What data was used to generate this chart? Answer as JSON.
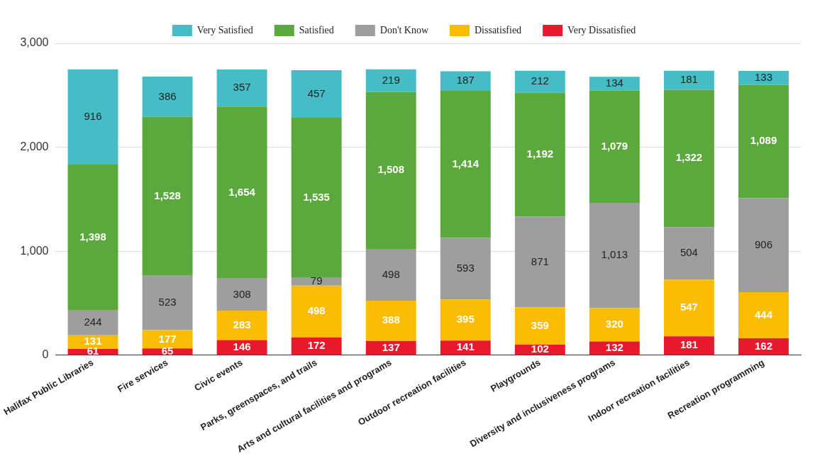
{
  "chart_data": {
    "type": "bar",
    "stacked": true,
    "categories": [
      "Halifax Public Libraries",
      "Fire services",
      "Civic events",
      "Parks, greenspaces, and trails",
      "Arts and cultural facilities and programs",
      "Outdoor recreation facilities",
      "Playgrounds",
      "Diversity and inclusiveness programs",
      "Indoor recreation facilities",
      "Recreation programming"
    ],
    "series": [
      {
        "name": "Very Dissatisfied",
        "color": "#e8192c",
        "values": [
          61,
          65,
          146,
          172,
          137,
          141,
          102,
          132,
          181,
          162
        ],
        "value_labels": [
          "61",
          "65",
          "146",
          "172",
          "137",
          "141",
          "102",
          "132",
          "181",
          "162"
        ]
      },
      {
        "name": "Dissatisfied",
        "color": "#fbbc04",
        "values": [
          131,
          177,
          283,
          498,
          388,
          395,
          359,
          320,
          547,
          444
        ],
        "value_labels": [
          "131",
          "177",
          "283",
          "498",
          "388",
          "395",
          "359",
          "320",
          "547",
          "444"
        ]
      },
      {
        "name": "Don't Know",
        "color": "#9e9e9e",
        "values": [
          244,
          523,
          308,
          79,
          498,
          593,
          871,
          1013,
          504,
          906
        ],
        "value_labels": [
          "244",
          "523",
          "308",
          "79",
          "498",
          "593",
          "871",
          "1,013",
          "504",
          "906"
        ]
      },
      {
        "name": "Satisfied",
        "color": "#5ba83d",
        "values": [
          1398,
          1528,
          1654,
          1535,
          1508,
          1414,
          1192,
          1079,
          1322,
          1089
        ],
        "value_labels": [
          "1,398",
          "1,528",
          "1,654",
          "1,535",
          "1,508",
          "1,414",
          "1,192",
          "1,079",
          "1,322",
          "1,089"
        ]
      },
      {
        "name": "Very Satisfied",
        "color": "#46bdc6",
        "values": [
          916,
          386,
          357,
          457,
          219,
          187,
          212,
          134,
          181,
          133
        ],
        "value_labels": [
          "916",
          "386",
          "357",
          "457",
          "219",
          "187",
          "212",
          "134",
          "181",
          "133"
        ]
      }
    ],
    "ylim": [
      0,
      3000
    ],
    "yticks": [
      {
        "value": 0,
        "label": "0"
      },
      {
        "value": 1000,
        "label": "1,000"
      },
      {
        "value": 2000,
        "label": "2,000"
      },
      {
        "value": 3000,
        "label": "3,000"
      }
    ],
    "grid": "y",
    "legend": "top"
  }
}
